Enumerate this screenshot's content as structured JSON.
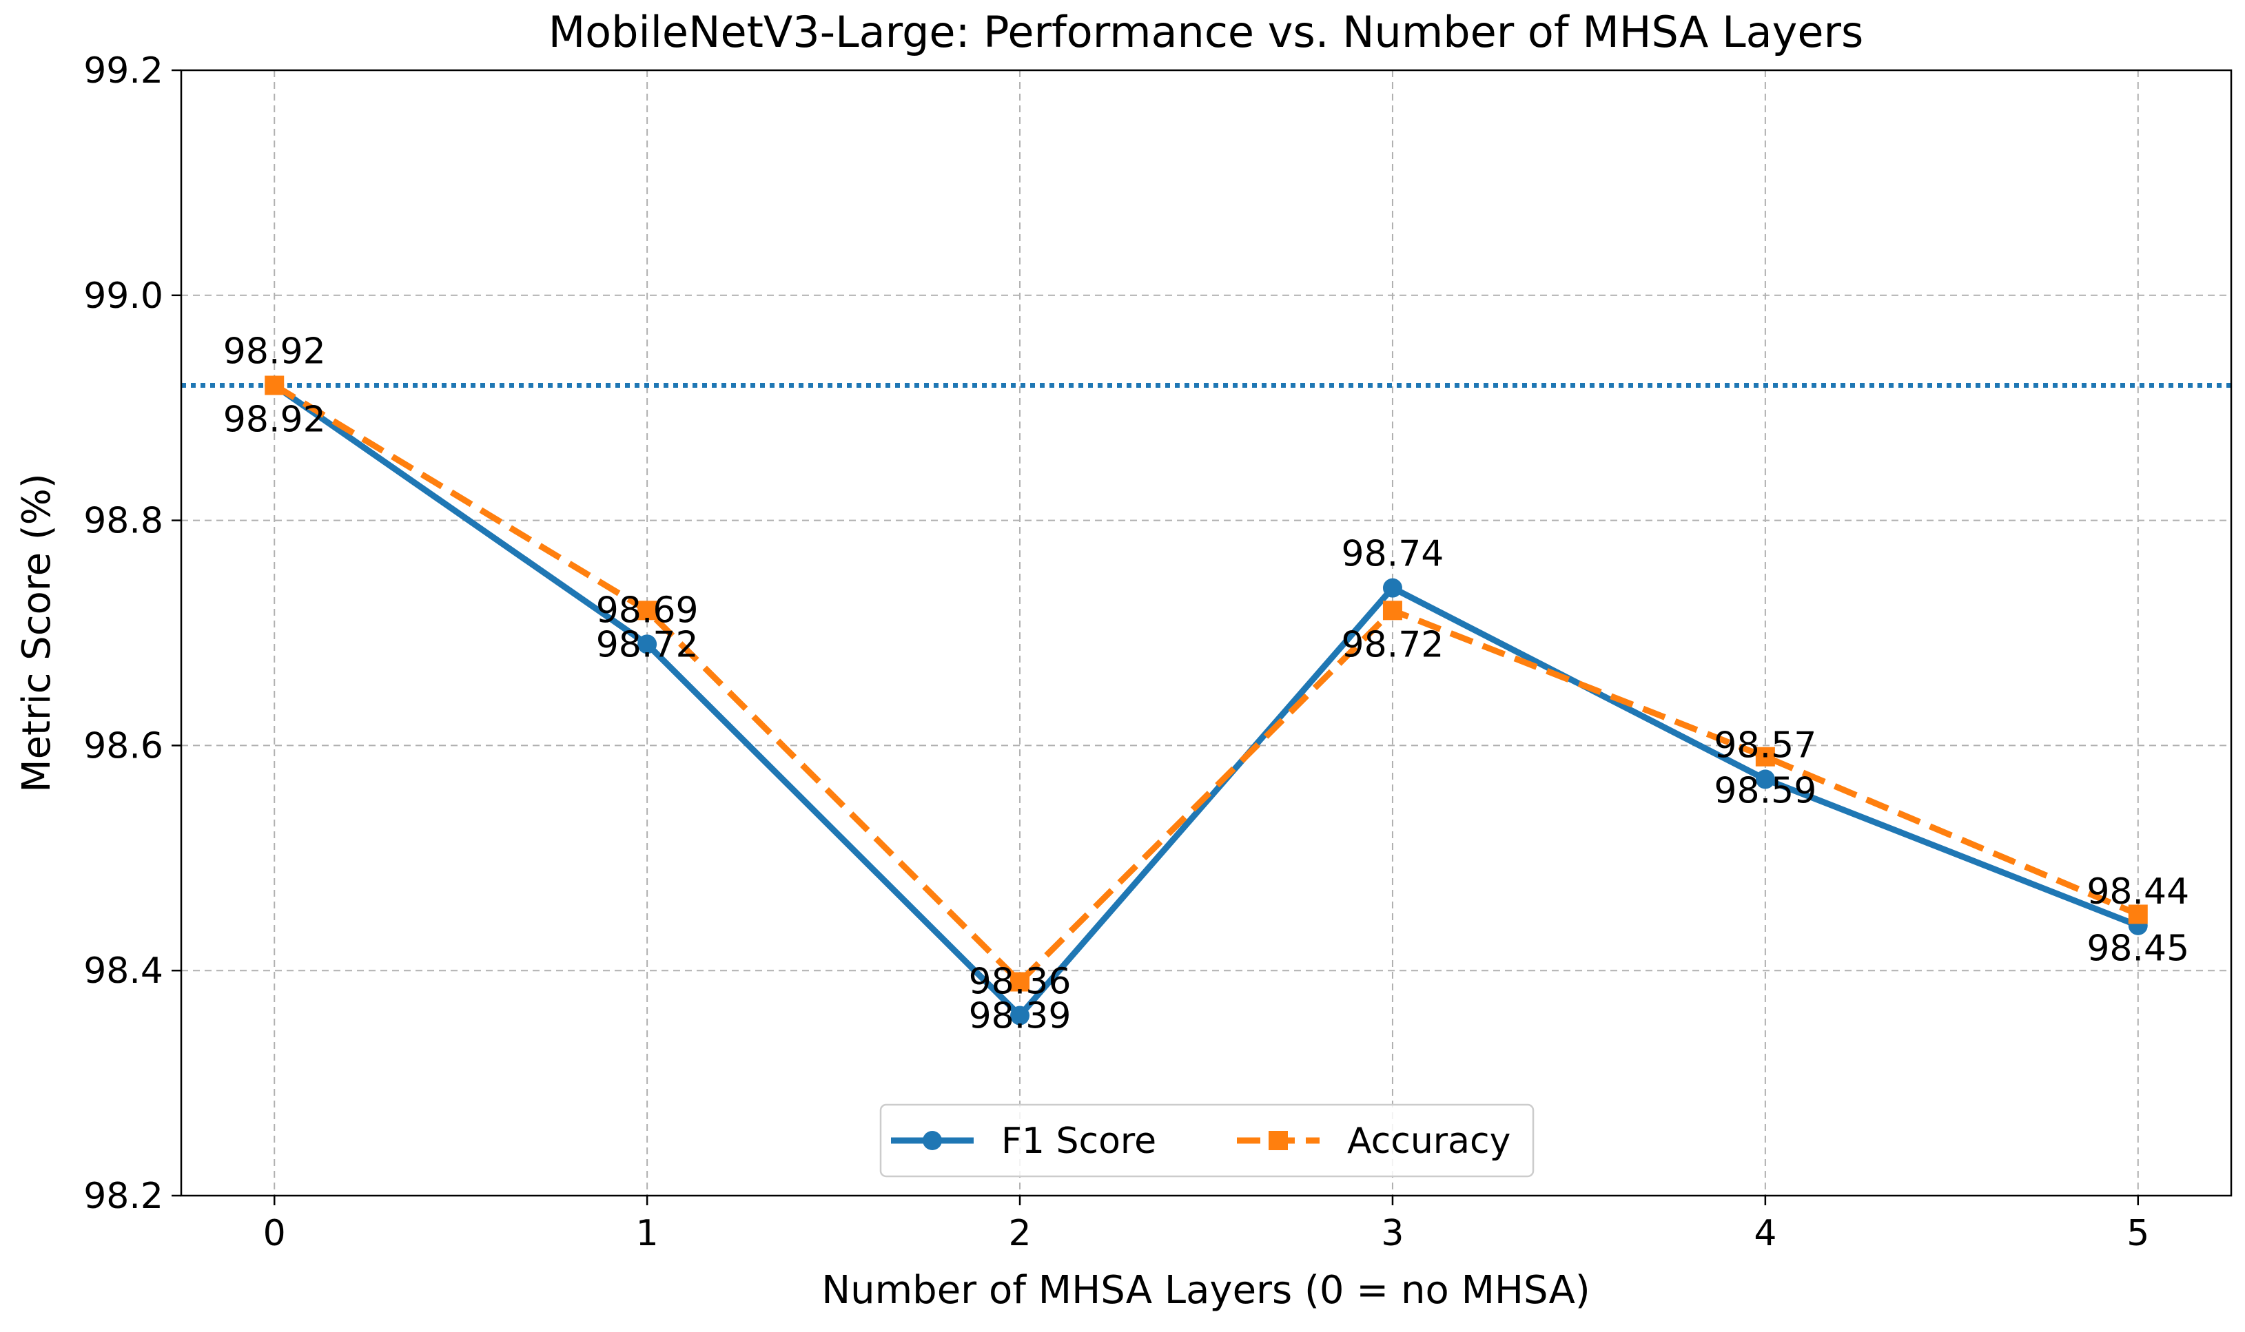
{
  "chart_data": {
    "type": "line",
    "title": "MobileNetV3-Large: Performance vs. Number of MHSA Layers",
    "xlabel": "Number of MHSA Layers (0 = no MHSA)",
    "ylabel": "Metric Score (%)",
    "x": [
      0,
      1,
      2,
      3,
      4,
      5
    ],
    "xticks": [
      "0",
      "1",
      "2",
      "3",
      "4",
      "5"
    ],
    "xlim": [
      -0.25,
      5.25
    ],
    "ylim": [
      98.2,
      99.2
    ],
    "yticks": [
      "98.2",
      "98.4",
      "98.6",
      "98.8",
      "99.0",
      "99.2"
    ],
    "grid": true,
    "legend_position": "lower center",
    "reference_line": {
      "y": 98.92,
      "style": "dotted",
      "color": "#1f77b4"
    },
    "series": [
      {
        "name": "F1 Score",
        "values": [
          98.92,
          98.69,
          98.36,
          98.74,
          98.57,
          98.44
        ],
        "color": "#1f77b4",
        "marker": "circle",
        "linestyle": "solid",
        "labels": [
          "98.92",
          "98.69",
          "98.36",
          "98.74",
          "98.57",
          "98.44"
        ]
      },
      {
        "name": "Accuracy",
        "values": [
          98.92,
          98.72,
          98.39,
          98.72,
          98.59,
          98.45
        ],
        "color": "#ff7f0e",
        "marker": "square",
        "linestyle": "dashed",
        "labels": [
          "98.92",
          "98.72",
          "98.39",
          "98.72",
          "98.59",
          "98.45"
        ]
      }
    ]
  }
}
